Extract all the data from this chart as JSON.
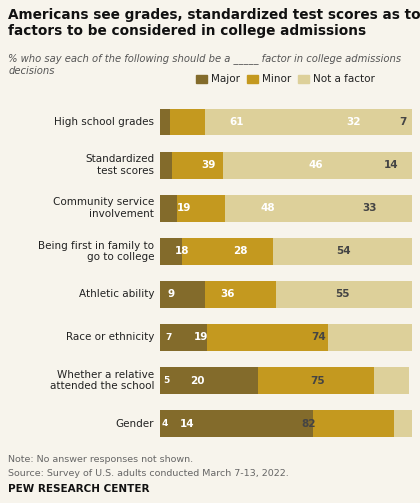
{
  "title": "Americans see grades, standardized test scores as top\nfactors to be considered in college admissions",
  "subtitle": "% who say each of the following should be a _____ factor in college admissions\ndecisions",
  "categories": [
    "High school grades",
    "Standardized\ntest scores",
    "Community service\ninvolvement",
    "Being first in family to\ngo to college",
    "Athletic ability",
    "Race or ethnicity",
    "Whether a relative\nattended the school",
    "Gender"
  ],
  "major": [
    61,
    39,
    19,
    18,
    9,
    7,
    5,
    4
  ],
  "minor": [
    32,
    46,
    48,
    28,
    36,
    19,
    20,
    14
  ],
  "not_factor": [
    7,
    14,
    33,
    54,
    55,
    74,
    75,
    82
  ],
  "color_major": "#836B2B",
  "color_minor": "#C4991F",
  "color_not_factor": "#DDD09A",
  "legend_labels": [
    "Major",
    "Minor",
    "Not a factor"
  ],
  "note_line1": "Note: No answer responses not shown.",
  "note_line2": "Source: Survey of U.S. adults conducted March 7-13, 2022.",
  "footer": "PEW RESEARCH CENTER",
  "background_color": "#F7F4EC",
  "bar_height": 0.62,
  "text_color": "#222222",
  "label_color_dark": "#ffffff",
  "label_color_light": "#444444"
}
